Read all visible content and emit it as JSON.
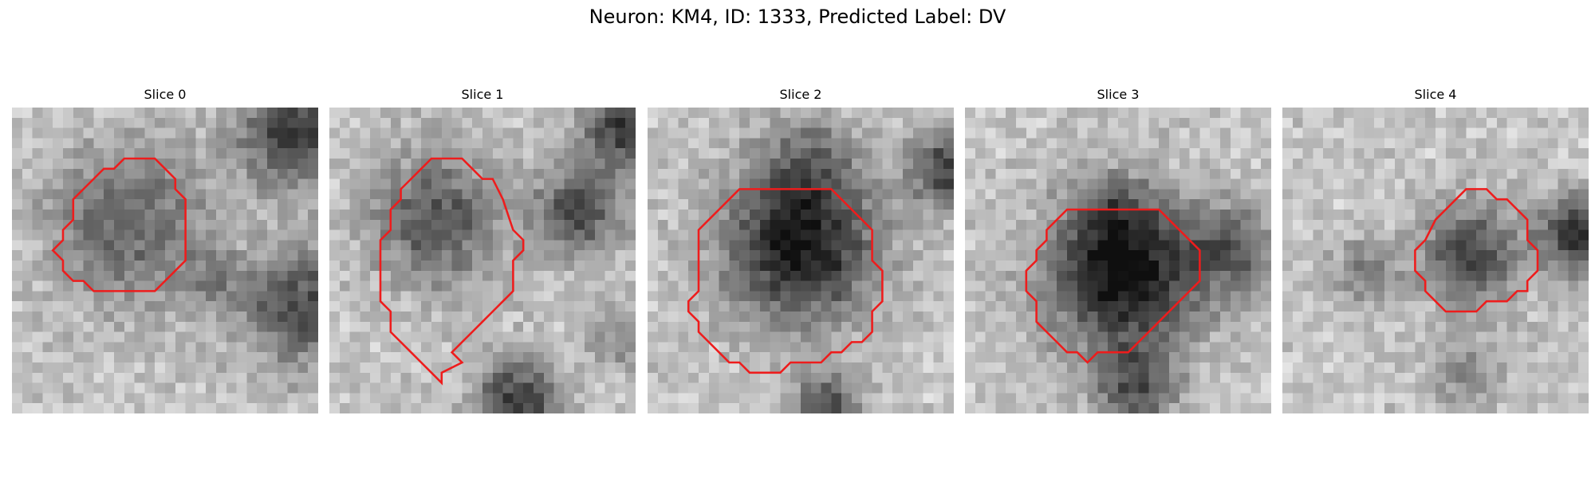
{
  "figure": {
    "title": "Neuron: KM4, ID: 1333, Predicted Label: DV",
    "grid_size": 30,
    "contour_color": "#ee1c1c",
    "colormap": "gray",
    "panels": [
      {
        "label": "Slice 0",
        "blobs": [
          {
            "cx": 11.5,
            "cy": 11.5,
            "r": 7.5,
            "intensity": 0.42
          },
          {
            "cx": 27.5,
            "cy": 2.5,
            "r": 5,
            "intensity": 0.6
          },
          {
            "cx": 28.5,
            "cy": 19.5,
            "r": 5.5,
            "intensity": 0.55
          },
          {
            "cx": 19.5,
            "cy": 17,
            "r": 2.5,
            "intensity": 0.25
          }
        ],
        "contour": [
          [
            11,
            5
          ],
          [
            14,
            5
          ],
          [
            15,
            6
          ],
          [
            16,
            7
          ],
          [
            16,
            8
          ],
          [
            17,
            9
          ],
          [
            17,
            10
          ],
          [
            17,
            15
          ],
          [
            16,
            16
          ],
          [
            15,
            17
          ],
          [
            14,
            18
          ],
          [
            8,
            18
          ],
          [
            7,
            17
          ],
          [
            6,
            17
          ],
          [
            5,
            16
          ],
          [
            5,
            15
          ],
          [
            4,
            14
          ],
          [
            5,
            13
          ],
          [
            5,
            12
          ],
          [
            6,
            11
          ],
          [
            6,
            9
          ],
          [
            7,
            8
          ],
          [
            8,
            7
          ],
          [
            9,
            6
          ],
          [
            10,
            6
          ]
        ]
      },
      {
        "label": "Slice 1",
        "blobs": [
          {
            "cx": 10.5,
            "cy": 11,
            "r": 6,
            "intensity": 0.5
          },
          {
            "cx": 24.5,
            "cy": 10,
            "r": 4,
            "intensity": 0.55
          },
          {
            "cx": 29,
            "cy": 2,
            "r": 4,
            "intensity": 0.65
          },
          {
            "cx": 18.5,
            "cy": 29,
            "r": 4,
            "intensity": 0.65
          },
          {
            "cx": 28.5,
            "cy": 22.5,
            "r": 3,
            "intensity": 0.25
          }
        ],
        "contour": [
          [
            11,
            5
          ],
          [
            13,
            5
          ],
          [
            14,
            6
          ],
          [
            15,
            7
          ],
          [
            16,
            7
          ],
          [
            17,
            9
          ],
          [
            18,
            12
          ],
          [
            19,
            13
          ],
          [
            19,
            14
          ],
          [
            18,
            15
          ],
          [
            18,
            18
          ],
          [
            17,
            19
          ],
          [
            16,
            20
          ],
          [
            15,
            21
          ],
          [
            14,
            22
          ],
          [
            13,
            23
          ],
          [
            12,
            24
          ],
          [
            13,
            25
          ],
          [
            11,
            26
          ],
          [
            11,
            27
          ],
          [
            10,
            26
          ],
          [
            9,
            25
          ],
          [
            8,
            24
          ],
          [
            7,
            23
          ],
          [
            6,
            22
          ],
          [
            6,
            20
          ],
          [
            5,
            19
          ],
          [
            5,
            13
          ],
          [
            6,
            12
          ],
          [
            6,
            10
          ],
          [
            7,
            9
          ],
          [
            7,
            8
          ],
          [
            8,
            7
          ],
          [
            9,
            6
          ],
          [
            10,
            5
          ]
        ]
      },
      {
        "label": "Slice 2",
        "blobs": [
          {
            "cx": 15,
            "cy": 13.5,
            "r": 7,
            "intensity": 0.78
          },
          {
            "cx": 15.5,
            "cy": 5.5,
            "r": 4.5,
            "intensity": 0.3
          },
          {
            "cx": 29.5,
            "cy": 6,
            "r": 3.5,
            "intensity": 0.6
          },
          {
            "cx": 17.5,
            "cy": 29.5,
            "r": 3,
            "intensity": 0.55
          }
        ],
        "contour": [
          [
            9,
            8
          ],
          [
            18,
            8
          ],
          [
            19,
            9
          ],
          [
            20,
            10
          ],
          [
            21,
            11
          ],
          [
            22,
            12
          ],
          [
            22,
            15
          ],
          [
            23,
            16
          ],
          [
            23,
            19
          ],
          [
            22,
            20
          ],
          [
            22,
            22
          ],
          [
            21,
            23
          ],
          [
            20,
            23
          ],
          [
            19,
            24
          ],
          [
            18,
            24
          ],
          [
            17,
            25
          ],
          [
            14,
            25
          ],
          [
            13,
            26
          ],
          [
            10,
            26
          ],
          [
            9,
            25
          ],
          [
            8,
            25
          ],
          [
            7,
            24
          ],
          [
            6,
            23
          ],
          [
            5,
            22
          ],
          [
            5,
            21
          ],
          [
            4,
            20
          ],
          [
            4,
            19
          ],
          [
            5,
            18
          ],
          [
            5,
            13
          ],
          [
            5,
            12
          ],
          [
            6,
            11
          ],
          [
            7,
            10
          ],
          [
            8,
            9
          ]
        ]
      },
      {
        "label": "Slice 3",
        "blobs": [
          {
            "cx": 15.5,
            "cy": 16.5,
            "r": 7,
            "intensity": 0.82
          },
          {
            "cx": 26,
            "cy": 14,
            "r": 4,
            "intensity": 0.45
          },
          {
            "cx": 17,
            "cy": 27.5,
            "r": 3.5,
            "intensity": 0.5
          },
          {
            "cx": 15,
            "cy": 10.5,
            "r": 4,
            "intensity": 0.25
          }
        ],
        "contour": [
          [
            10,
            10
          ],
          [
            19,
            10
          ],
          [
            20,
            11
          ],
          [
            21,
            12
          ],
          [
            22,
            13
          ],
          [
            23,
            14
          ],
          [
            23,
            17
          ],
          [
            22,
            18
          ],
          [
            21,
            19
          ],
          [
            20,
            20
          ],
          [
            19,
            21
          ],
          [
            18,
            22
          ],
          [
            17,
            23
          ],
          [
            16,
            24
          ],
          [
            13,
            24
          ],
          [
            12,
            25
          ],
          [
            11,
            24
          ],
          [
            10,
            24
          ],
          [
            9,
            23
          ],
          [
            8,
            22
          ],
          [
            7,
            21
          ],
          [
            7,
            19
          ],
          [
            6,
            18
          ],
          [
            6,
            16
          ],
          [
            7,
            15
          ],
          [
            7,
            14
          ],
          [
            8,
            13
          ],
          [
            8,
            12
          ],
          [
            9,
            11
          ]
        ]
      },
      {
        "label": "Slice 4",
        "blobs": [
          {
            "cx": 18.5,
            "cy": 14.5,
            "r": 4.5,
            "intensity": 0.58
          },
          {
            "cx": 29,
            "cy": 12.5,
            "r": 3.5,
            "intensity": 0.7
          },
          {
            "cx": 8,
            "cy": 16,
            "r": 3,
            "intensity": 0.3
          },
          {
            "cx": 18,
            "cy": 26,
            "r": 3.5,
            "intensity": 0.25
          }
        ],
        "contour": [
          [
            18,
            8
          ],
          [
            20,
            8
          ],
          [
            21,
            9
          ],
          [
            22,
            9
          ],
          [
            23,
            10
          ],
          [
            24,
            11
          ],
          [
            24,
            13
          ],
          [
            25,
            14
          ],
          [
            25,
            16
          ],
          [
            24,
            17
          ],
          [
            24,
            18
          ],
          [
            23,
            18
          ],
          [
            22,
            19
          ],
          [
            20,
            19
          ],
          [
            19,
            20
          ],
          [
            16,
            20
          ],
          [
            15,
            19
          ],
          [
            14,
            18
          ],
          [
            14,
            17
          ],
          [
            13,
            16
          ],
          [
            13,
            14
          ],
          [
            14,
            13
          ],
          [
            15,
            11
          ],
          [
            16,
            10
          ],
          [
            17,
            9
          ]
        ]
      }
    ]
  }
}
